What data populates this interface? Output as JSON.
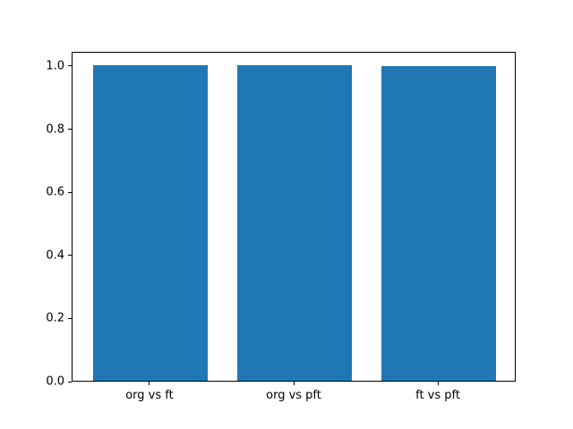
{
  "chart_data": {
    "type": "bar",
    "categories": [
      "org vs ft",
      "org vs pft",
      "ft vs pft"
    ],
    "values": [
      1.0,
      1.0,
      0.997
    ],
    "title": "",
    "xlabel": "",
    "ylabel": "",
    "ylim": [
      0,
      1.045
    ],
    "xlim": [
      -0.54,
      2.54
    ],
    "yticks": [
      0.0,
      0.2,
      0.4,
      0.6,
      0.8,
      1.0
    ],
    "ytick_format_decimals": 1,
    "bar_width": 0.8,
    "bar_color": "#1f77b4",
    "grid": false,
    "legend_position": "none"
  }
}
